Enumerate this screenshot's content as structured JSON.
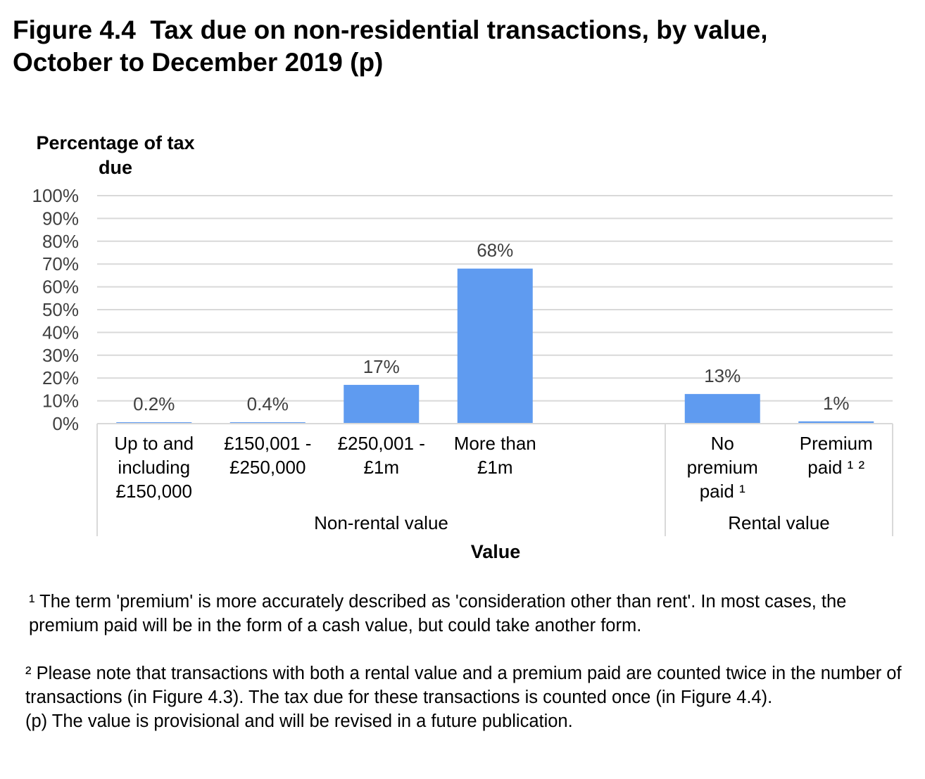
{
  "title_lines": [
    "Figure 4.4  Tax due on non-residential transactions, by value,",
    "October to December 2019 (p)"
  ],
  "chart_data": {
    "type": "bar",
    "ylabel_lines": [
      "Percentage of tax",
      "due"
    ],
    "xlabel": "Value",
    "ylim": [
      0,
      100
    ],
    "y_ticks": [
      "0%",
      "10%",
      "20%",
      "30%",
      "40%",
      "50%",
      "60%",
      "70%",
      "80%",
      "90%",
      "100%"
    ],
    "grid": true,
    "bar_color": "#5f9bf0",
    "groups": [
      {
        "label": "Non-rental value",
        "categories": [
          {
            "label_lines": [
              "Up to and",
              "including",
              "£150,000"
            ],
            "value": 0.2,
            "data_label": "0.2%"
          },
          {
            "label_lines": [
              "£150,001 -",
              "£250,000"
            ],
            "value": 0.4,
            "data_label": "0.4%"
          },
          {
            "label_lines": [
              "£250,001 -",
              "£1m"
            ],
            "value": 17,
            "data_label": "17%"
          },
          {
            "label_lines": [
              "More than",
              "£1m"
            ],
            "value": 68,
            "data_label": "68%"
          }
        ]
      },
      {
        "label": "Rental value",
        "categories": [
          {
            "label_lines": [
              "No",
              "premium",
              "paid ¹"
            ],
            "value": 13,
            "data_label": "13%"
          },
          {
            "label_lines": [
              "Premium",
              "paid ¹ ²"
            ],
            "value": 1,
            "data_label": "1%"
          }
        ]
      }
    ]
  },
  "notes": {
    "note1": "¹ The term 'premium' is more accurately described as 'consideration other than rent'. In most cases, the premium paid will be in the form of a cash value, but could take another form.",
    "note2": "² Please note that transactions with both a rental value and a premium paid are counted twice in the number of transactions (in Figure 4.3). The tax due for these transactions is counted once (in Figure 4.4).",
    "note3": "(p) The value is provisional and will be revised in a future publication."
  }
}
